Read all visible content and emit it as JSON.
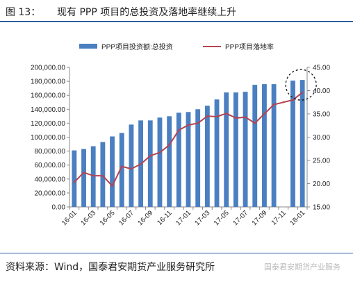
{
  "header": {
    "fig_label": "图 13：",
    "title": "现有 PPP 项目的总投资及落地率继续上升"
  },
  "footer": {
    "source": "资料来源：Wind，国泰君安期货产业服务研究所",
    "watermark": "国泰君安期货产业服务"
  },
  "chart_data": {
    "type": "bar+line",
    "title": "",
    "categories": [
      "16-01",
      "16-02",
      "16-03",
      "16-04",
      "16-05",
      "16-06",
      "16-07",
      "16-08",
      "16-09",
      "16-10",
      "16-11",
      "16-12",
      "17-01",
      "17-02",
      "17-03",
      "17-04",
      "17-05",
      "17-06",
      "17-07",
      "17-08",
      "17-09",
      "17-10",
      "17-11",
      "17-12",
      "18-01"
    ],
    "x_tick_labels": [
      "16-01",
      "16-03",
      "16-05",
      "16-07",
      "16-09",
      "16-11",
      "17-01",
      "17-03",
      "17-05",
      "17-07",
      "17-09",
      "17-11",
      "18-01"
    ],
    "series": [
      {
        "name": "PPP项目投资额:总投资",
        "kind": "bar",
        "axis": "left",
        "color": "#4a7fc1",
        "values": [
          81000,
          83000,
          87000,
          93000,
          101000,
          106000,
          118000,
          124000,
          124000,
          128000,
          130000,
          135000,
          136000,
          140000,
          145000,
          154000,
          164000,
          164000,
          165000,
          175000,
          176000,
          176000,
          null,
          181000,
          182000
        ]
      },
      {
        "name": "PPP项目落地率",
        "kind": "line",
        "axis": "right",
        "color": "#b5434e",
        "values": [
          20.3,
          22.4,
          21.7,
          21.7,
          19.5,
          23.7,
          23.2,
          24.2,
          26.0,
          26.7,
          28.3,
          31.5,
          32.6,
          33.0,
          34.5,
          34.4,
          35.1,
          34.1,
          34.3,
          33.0,
          35.0,
          37.0,
          37.5,
          38.0,
          39.6
        ]
      }
    ],
    "y_left": {
      "lim": [
        0,
        200000
      ],
      "step": 20000,
      "tick_labels": [
        "0.00",
        "20,000.00",
        "40,000.00",
        "60,000.00",
        "80,000.00",
        "100,000.00",
        "120,000.00",
        "140,000.00",
        "160,000.00",
        "180,000.00",
        "200,000.00"
      ]
    },
    "y_right": {
      "lim": [
        15,
        45
      ],
      "step": 5,
      "tick_labels": [
        "15.00",
        "20.00",
        "25.00",
        "30.00",
        "35.00",
        "40.00",
        "45.00"
      ]
    },
    "legend": "top",
    "grid": false,
    "annotation": "dashed circle around latest values"
  }
}
